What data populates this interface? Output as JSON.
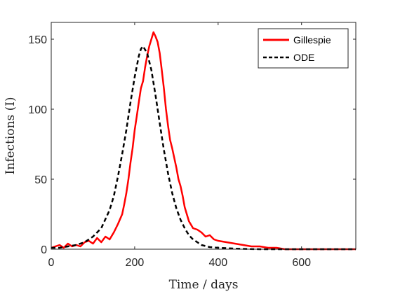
{
  "chart_data": {
    "type": "line",
    "title": "",
    "xlabel": "Time / days",
    "ylabel": "Infections (I)",
    "xlim": [
      0,
      730
    ],
    "ylim": [
      0,
      162
    ],
    "xticks": [
      0,
      200,
      400,
      600
    ],
    "yticks": [
      0,
      50,
      100,
      150
    ],
    "grid": false,
    "legend_position": "top-right",
    "series": [
      {
        "name": "Gillespie",
        "color": "#ff0000",
        "style": "solid",
        "x": [
          0,
          10,
          20,
          30,
          40,
          50,
          60,
          70,
          80,
          90,
          100,
          110,
          120,
          130,
          140,
          150,
          160,
          170,
          175,
          180,
          185,
          190,
          195,
          200,
          205,
          210,
          215,
          220,
          225,
          230,
          235,
          240,
          245,
          250,
          255,
          260,
          265,
          270,
          275,
          280,
          285,
          290,
          295,
          300,
          305,
          310,
          315,
          320,
          325,
          330,
          340,
          350,
          360,
          370,
          380,
          390,
          400,
          420,
          440,
          460,
          480,
          500,
          520,
          540,
          560,
          600,
          650,
          700,
          730
        ],
        "y": [
          1,
          2,
          3,
          1,
          4,
          2,
          3,
          2,
          5,
          6,
          4,
          8,
          5,
          9,
          7,
          12,
          18,
          25,
          32,
          40,
          50,
          62,
          72,
          85,
          95,
          105,
          115,
          120,
          130,
          138,
          145,
          150,
          155,
          152,
          148,
          140,
          128,
          115,
          100,
          88,
          78,
          72,
          65,
          58,
          50,
          45,
          38,
          30,
          25,
          20,
          15,
          14,
          12,
          9,
          10,
          7,
          6,
          5,
          4,
          3,
          2,
          2,
          1,
          1,
          0,
          0,
          0,
          0,
          0
        ]
      },
      {
        "name": "ODE",
        "color": "#000000",
        "style": "dashed",
        "x": [
          0,
          20,
          40,
          60,
          80,
          100,
          120,
          140,
          150,
          160,
          170,
          180,
          190,
          200,
          210,
          215,
          220,
          230,
          240,
          250,
          260,
          270,
          280,
          290,
          300,
          310,
          320,
          330,
          340,
          350,
          360,
          380,
          400,
          450,
          500,
          600,
          700,
          730
        ],
        "y": [
          1,
          1,
          2,
          3,
          5,
          9,
          15,
          28,
          38,
          52,
          68,
          85,
          105,
          123,
          138,
          143,
          145,
          140,
          128,
          110,
          90,
          71,
          54,
          40,
          29,
          21,
          15,
          10,
          7,
          5,
          3,
          1.5,
          1,
          0.3,
          0,
          0,
          0,
          0
        ]
      }
    ]
  }
}
